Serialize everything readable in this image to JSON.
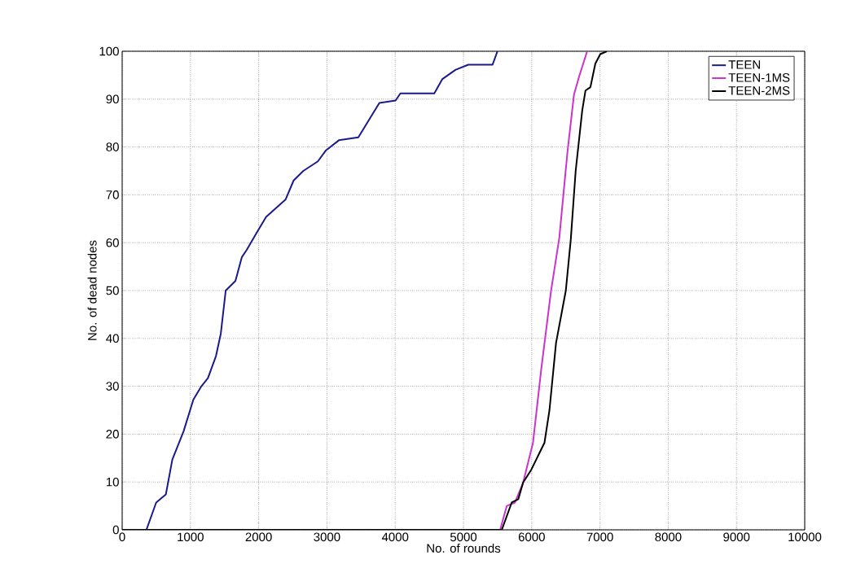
{
  "chart_data": {
    "type": "line",
    "xlabel": "No. of rounds",
    "ylabel": "No. of dead nodes",
    "xlim": [
      0,
      10000
    ],
    "ylim": [
      0,
      100
    ],
    "xticks": [
      0,
      1000,
      2000,
      3000,
      4000,
      5000,
      6000,
      7000,
      8000,
      9000,
      10000
    ],
    "yticks": [
      0,
      10,
      20,
      30,
      40,
      50,
      60,
      70,
      80,
      90,
      100
    ],
    "grid": true,
    "legend": "top right",
    "line_style": "solid",
    "marker": "none",
    "series": [
      {
        "name": "TEEN",
        "color": "#1a1a8c",
        "x": [
          0,
          355,
          498,
          640,
          735,
          900,
          1043,
          1161,
          1256,
          1374,
          1445,
          1517,
          1659,
          1754,
          1825,
          1967,
          2109,
          2393,
          2512,
          2654,
          2867,
          2986,
          3175,
          3460,
          3673,
          3768,
          4005,
          4076,
          4573,
          4692,
          4882,
          5071,
          5427,
          5498
        ],
        "values": [
          0,
          0,
          5.7,
          7.4,
          14.7,
          20.6,
          27.2,
          30,
          31.7,
          36.3,
          41,
          50,
          52,
          57,
          58.5,
          62,
          65.4,
          69,
          73,
          75,
          77,
          79.3,
          81.4,
          82,
          87,
          89.2,
          89.7,
          91.2,
          91.2,
          94.2,
          96.1,
          97.2,
          97.2,
          100
        ]
      },
      {
        "name": "TEEN-1MS",
        "color": "#cc33cc",
        "x": [
          0,
          5538,
          5635,
          5755,
          5875,
          6019,
          6139,
          6284,
          6404,
          6524,
          6620,
          6692,
          6812
        ],
        "values": [
          0,
          0,
          5,
          5.7,
          9.9,
          18.2,
          33.5,
          50,
          61,
          79,
          91,
          94.6,
          100
        ]
      },
      {
        "name": "TEEN-2MS",
        "color": "#000000",
        "x": [
          0,
          5562,
          5707,
          5803,
          5875,
          5995,
          6187,
          6260,
          6356,
          6500,
          6572,
          6644,
          6740,
          6788,
          6860,
          6932,
          7005,
          7101
        ],
        "values": [
          0,
          0,
          5.7,
          6.4,
          9.9,
          12.6,
          18.2,
          25,
          39,
          50,
          60.6,
          75,
          87.6,
          91.8,
          92.5,
          97.4,
          99.4,
          100
        ]
      }
    ]
  }
}
